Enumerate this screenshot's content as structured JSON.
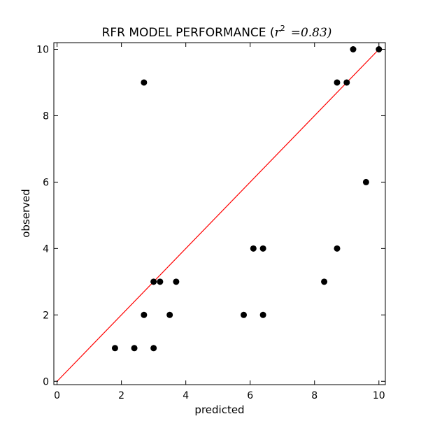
{
  "chart_data": {
    "type": "scatter",
    "title": {
      "prefix": "RFR MODEL PERFORMANCE (",
      "r": "r",
      "exp": "2",
      "eq": "=0.83)"
    },
    "xlabel": "predicted",
    "ylabel": "observed",
    "xlim": [
      -0.1,
      10.2
    ],
    "ylim": [
      -0.1,
      10.2
    ],
    "xticks": [
      "0",
      "2",
      "4",
      "6",
      "8",
      "10"
    ],
    "yticks": [
      "0",
      "2",
      "4",
      "6",
      "8",
      "10"
    ],
    "grid": false,
    "legend": "none",
    "points": [
      {
        "x": 1.8,
        "y": 1
      },
      {
        "x": 2.4,
        "y": 1
      },
      {
        "x": 3.0,
        "y": 1
      },
      {
        "x": 2.7,
        "y": 2
      },
      {
        "x": 3.5,
        "y": 2
      },
      {
        "x": 3.0,
        "y": 3
      },
      {
        "x": 3.2,
        "y": 3
      },
      {
        "x": 3.7,
        "y": 3
      },
      {
        "x": 2.7,
        "y": 9
      },
      {
        "x": 5.8,
        "y": 2
      },
      {
        "x": 6.4,
        "y": 2
      },
      {
        "x": 6.1,
        "y": 4
      },
      {
        "x": 6.4,
        "y": 4
      },
      {
        "x": 8.3,
        "y": 3
      },
      {
        "x": 8.7,
        "y": 4
      },
      {
        "x": 8.7,
        "y": 9
      },
      {
        "x": 9.0,
        "y": 9
      },
      {
        "x": 9.2,
        "y": 10
      },
      {
        "x": 9.6,
        "y": 6
      },
      {
        "x": 10.0,
        "y": 10
      }
    ],
    "reference_line": {
      "from": [
        0,
        0
      ],
      "to": [
        10,
        10
      ],
      "color": "#ff0000"
    },
    "marker_color": "#000000"
  }
}
